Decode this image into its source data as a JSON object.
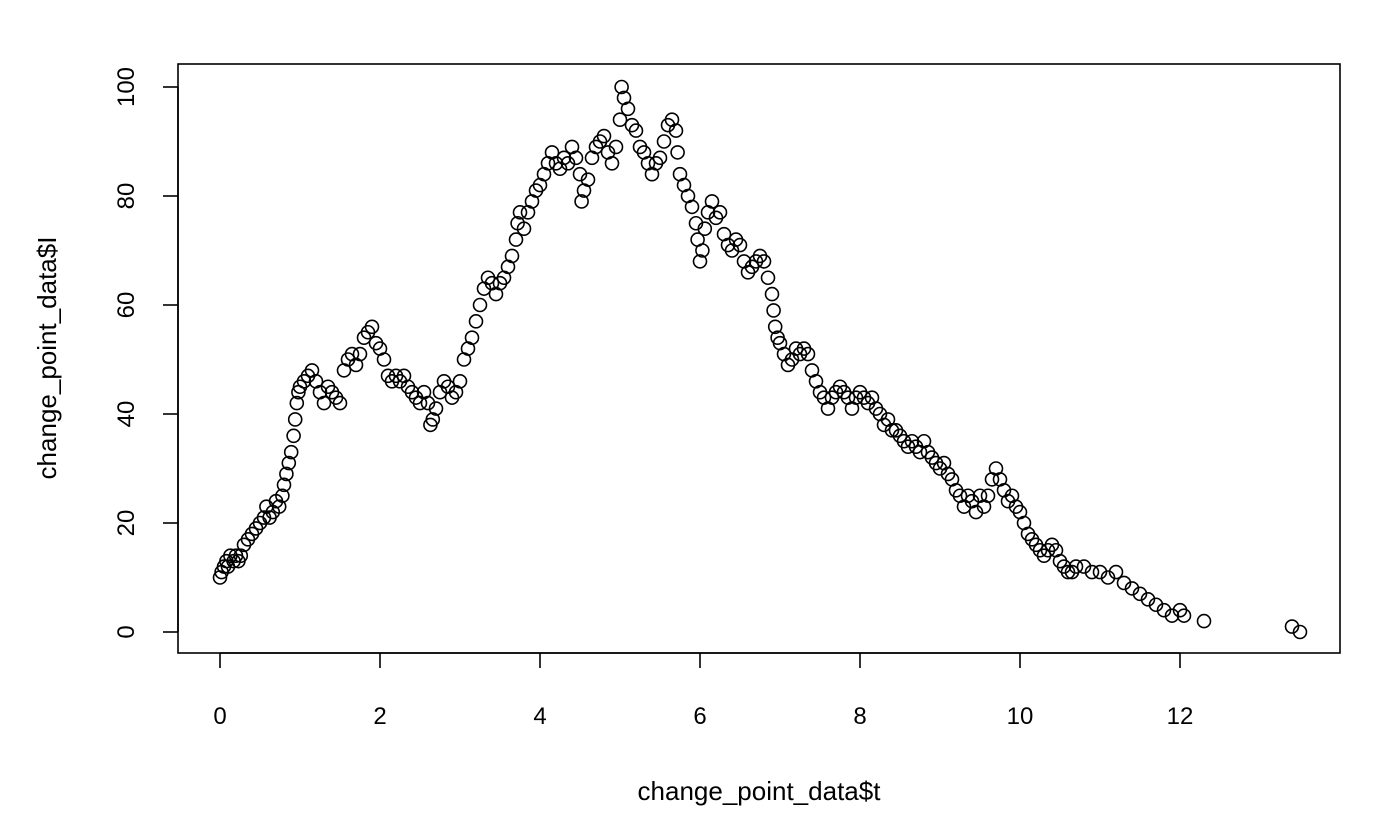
{
  "chart_data": {
    "type": "scatter",
    "title": "",
    "xlabel": "change_point_data$t",
    "ylabel": "change_point_data$I",
    "xlim": [
      0,
      13.5
    ],
    "ylim": [
      0,
      100
    ],
    "x_ticks": [
      0,
      2,
      4,
      6,
      8,
      10,
      12
    ],
    "y_ticks": [
      0,
      20,
      40,
      60,
      80,
      100
    ],
    "x_tick_labels": [
      "0",
      "2",
      "4",
      "6",
      "8",
      "10",
      "12"
    ],
    "y_tick_labels": [
      "0",
      "20",
      "40",
      "60",
      "80",
      "100"
    ],
    "grid": false,
    "marker": "open-circle",
    "color": "#000000",
    "series": [
      {
        "points": [
          [
            0.0,
            10
          ],
          [
            0.02,
            11
          ],
          [
            0.05,
            12
          ],
          [
            0.08,
            13
          ],
          [
            0.1,
            12
          ],
          [
            0.13,
            14
          ],
          [
            0.17,
            13
          ],
          [
            0.2,
            14
          ],
          [
            0.23,
            13
          ],
          [
            0.26,
            14
          ],
          [
            0.3,
            16
          ],
          [
            0.35,
            17
          ],
          [
            0.4,
            18
          ],
          [
            0.45,
            19
          ],
          [
            0.5,
            20
          ],
          [
            0.55,
            21
          ],
          [
            0.58,
            23
          ],
          [
            0.62,
            21
          ],
          [
            0.66,
            22
          ],
          [
            0.7,
            24
          ],
          [
            0.74,
            23
          ],
          [
            0.78,
            25
          ],
          [
            0.8,
            27
          ],
          [
            0.83,
            29
          ],
          [
            0.86,
            31
          ],
          [
            0.89,
            33
          ],
          [
            0.92,
            36
          ],
          [
            0.94,
            39
          ],
          [
            0.96,
            42
          ],
          [
            0.98,
            44
          ],
          [
            1.0,
            45
          ],
          [
            1.05,
            46
          ],
          [
            1.1,
            47
          ],
          [
            1.15,
            48
          ],
          [
            1.2,
            46
          ],
          [
            1.25,
            44
          ],
          [
            1.3,
            42
          ],
          [
            1.35,
            45
          ],
          [
            1.4,
            44
          ],
          [
            1.45,
            43
          ],
          [
            1.5,
            42
          ],
          [
            1.55,
            48
          ],
          [
            1.6,
            50
          ],
          [
            1.65,
            51
          ],
          [
            1.7,
            49
          ],
          [
            1.75,
            51
          ],
          [
            1.8,
            54
          ],
          [
            1.85,
            55
          ],
          [
            1.9,
            56
          ],
          [
            1.95,
            53
          ],
          [
            2.0,
            52
          ],
          [
            2.05,
            50
          ],
          [
            2.1,
            47
          ],
          [
            2.15,
            46
          ],
          [
            2.2,
            47
          ],
          [
            2.25,
            46
          ],
          [
            2.3,
            47
          ],
          [
            2.35,
            45
          ],
          [
            2.4,
            44
          ],
          [
            2.45,
            43
          ],
          [
            2.5,
            42
          ],
          [
            2.55,
            44
          ],
          [
            2.6,
            42
          ],
          [
            2.63,
            38
          ],
          [
            2.66,
            39
          ],
          [
            2.7,
            41
          ],
          [
            2.75,
            44
          ],
          [
            2.8,
            46
          ],
          [
            2.85,
            45
          ],
          [
            2.9,
            43
          ],
          [
            2.95,
            44
          ],
          [
            3.0,
            46
          ],
          [
            3.05,
            50
          ],
          [
            3.1,
            52
          ],
          [
            3.15,
            54
          ],
          [
            3.2,
            57
          ],
          [
            3.25,
            60
          ],
          [
            3.3,
            63
          ],
          [
            3.35,
            65
          ],
          [
            3.4,
            64
          ],
          [
            3.45,
            62
          ],
          [
            3.5,
            64
          ],
          [
            3.55,
            65
          ],
          [
            3.6,
            67
          ],
          [
            3.65,
            69
          ],
          [
            3.7,
            72
          ],
          [
            3.72,
            75
          ],
          [
            3.75,
            77
          ],
          [
            3.8,
            74
          ],
          [
            3.85,
            77
          ],
          [
            3.9,
            79
          ],
          [
            3.95,
            81
          ],
          [
            4.0,
            82
          ],
          [
            4.05,
            84
          ],
          [
            4.1,
            86
          ],
          [
            4.15,
            88
          ],
          [
            4.2,
            86
          ],
          [
            4.25,
            85
          ],
          [
            4.3,
            87
          ],
          [
            4.35,
            86
          ],
          [
            4.4,
            89
          ],
          [
            4.45,
            87
          ],
          [
            4.5,
            84
          ],
          [
            4.52,
            79
          ],
          [
            4.55,
            81
          ],
          [
            4.6,
            83
          ],
          [
            4.65,
            87
          ],
          [
            4.7,
            89
          ],
          [
            4.75,
            90
          ],
          [
            4.8,
            91
          ],
          [
            4.85,
            88
          ],
          [
            4.9,
            86
          ],
          [
            4.95,
            89
          ],
          [
            5.0,
            94
          ],
          [
            5.02,
            100
          ],
          [
            5.05,
            98
          ],
          [
            5.1,
            96
          ],
          [
            5.15,
            93
          ],
          [
            5.2,
            92
          ],
          [
            5.25,
            89
          ],
          [
            5.3,
            88
          ],
          [
            5.35,
            86
          ],
          [
            5.4,
            84
          ],
          [
            5.45,
            86
          ],
          [
            5.5,
            87
          ],
          [
            5.55,
            90
          ],
          [
            5.6,
            93
          ],
          [
            5.65,
            94
          ],
          [
            5.7,
            92
          ],
          [
            5.72,
            88
          ],
          [
            5.75,
            84
          ],
          [
            5.8,
            82
          ],
          [
            5.85,
            80
          ],
          [
            5.9,
            78
          ],
          [
            5.95,
            75
          ],
          [
            5.97,
            72
          ],
          [
            6.0,
            68
          ],
          [
            6.03,
            70
          ],
          [
            6.06,
            74
          ],
          [
            6.1,
            77
          ],
          [
            6.15,
            79
          ],
          [
            6.2,
            76
          ],
          [
            6.25,
            77
          ],
          [
            6.3,
            73
          ],
          [
            6.35,
            71
          ],
          [
            6.4,
            70
          ],
          [
            6.45,
            72
          ],
          [
            6.5,
            71
          ],
          [
            6.55,
            68
          ],
          [
            6.6,
            66
          ],
          [
            6.65,
            67
          ],
          [
            6.7,
            68
          ],
          [
            6.75,
            69
          ],
          [
            6.8,
            68
          ],
          [
            6.85,
            65
          ],
          [
            6.9,
            62
          ],
          [
            6.92,
            59
          ],
          [
            6.94,
            56
          ],
          [
            6.97,
            54
          ],
          [
            7.0,
            53
          ],
          [
            7.05,
            51
          ],
          [
            7.1,
            49
          ],
          [
            7.15,
            50
          ],
          [
            7.2,
            52
          ],
          [
            7.25,
            51
          ],
          [
            7.3,
            52
          ],
          [
            7.35,
            51
          ],
          [
            7.4,
            48
          ],
          [
            7.45,
            46
          ],
          [
            7.5,
            44
          ],
          [
            7.55,
            43
          ],
          [
            7.6,
            41
          ],
          [
            7.65,
            43
          ],
          [
            7.7,
            44
          ],
          [
            7.75,
            45
          ],
          [
            7.8,
            44
          ],
          [
            7.85,
            43
          ],
          [
            7.9,
            41
          ],
          [
            7.95,
            43
          ],
          [
            8.0,
            44
          ],
          [
            8.05,
            43
          ],
          [
            8.1,
            42
          ],
          [
            8.15,
            43
          ],
          [
            8.2,
            41
          ],
          [
            8.25,
            40
          ],
          [
            8.3,
            38
          ],
          [
            8.35,
            39
          ],
          [
            8.4,
            37
          ],
          [
            8.45,
            37
          ],
          [
            8.5,
            36
          ],
          [
            8.55,
            35
          ],
          [
            8.6,
            34
          ],
          [
            8.65,
            35
          ],
          [
            8.7,
            34
          ],
          [
            8.75,
            33
          ],
          [
            8.8,
            35
          ],
          [
            8.85,
            33
          ],
          [
            8.9,
            32
          ],
          [
            8.95,
            31
          ],
          [
            9.0,
            30
          ],
          [
            9.05,
            31
          ],
          [
            9.1,
            29
          ],
          [
            9.15,
            28
          ],
          [
            9.2,
            26
          ],
          [
            9.25,
            25
          ],
          [
            9.3,
            23
          ],
          [
            9.35,
            25
          ],
          [
            9.4,
            24
          ],
          [
            9.45,
            22
          ],
          [
            9.5,
            25
          ],
          [
            9.55,
            23
          ],
          [
            9.6,
            25
          ],
          [
            9.65,
            28
          ],
          [
            9.7,
            30
          ],
          [
            9.75,
            28
          ],
          [
            9.8,
            26
          ],
          [
            9.85,
            24
          ],
          [
            9.9,
            25
          ],
          [
            9.95,
            23
          ],
          [
            10.0,
            22
          ],
          [
            10.05,
            20
          ],
          [
            10.1,
            18
          ],
          [
            10.15,
            17
          ],
          [
            10.2,
            16
          ],
          [
            10.25,
            15
          ],
          [
            10.3,
            14
          ],
          [
            10.35,
            15
          ],
          [
            10.4,
            16
          ],
          [
            10.45,
            15
          ],
          [
            10.5,
            13
          ],
          [
            10.55,
            12
          ],
          [
            10.6,
            11
          ],
          [
            10.65,
            11
          ],
          [
            10.7,
            12
          ],
          [
            10.8,
            12
          ],
          [
            10.9,
            11
          ],
          [
            11.0,
            11
          ],
          [
            11.1,
            10
          ],
          [
            11.2,
            11
          ],
          [
            11.3,
            9
          ],
          [
            11.4,
            8
          ],
          [
            11.5,
            7
          ],
          [
            11.6,
            6
          ],
          [
            11.7,
            5
          ],
          [
            11.8,
            4
          ],
          [
            11.9,
            3
          ],
          [
            12.0,
            4
          ],
          [
            12.05,
            3
          ],
          [
            12.3,
            2
          ],
          [
            13.4,
            1
          ],
          [
            13.5,
            0
          ]
        ]
      }
    ]
  }
}
